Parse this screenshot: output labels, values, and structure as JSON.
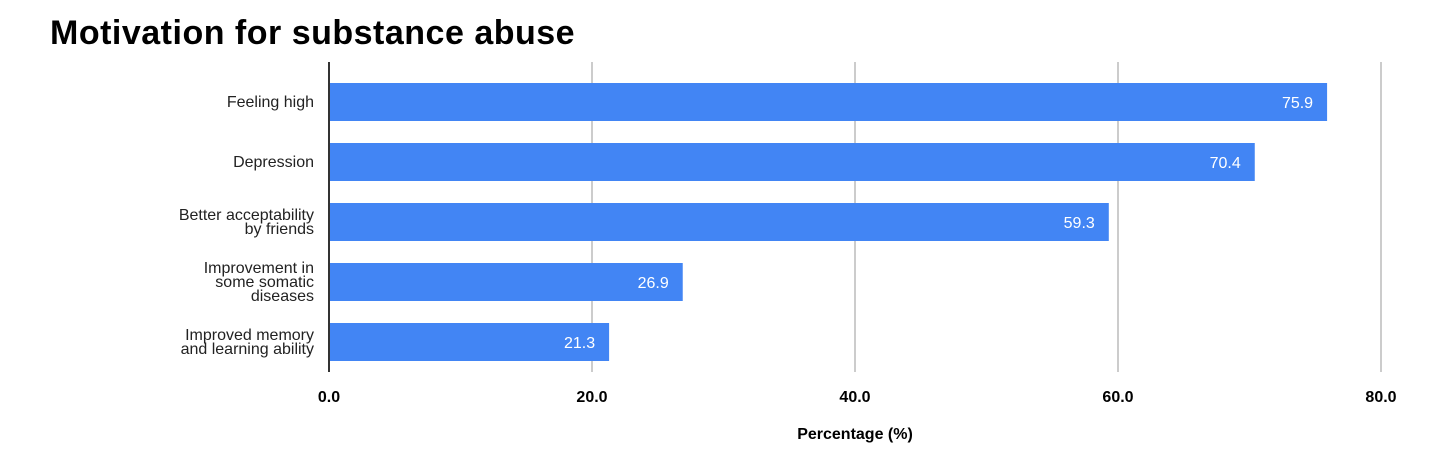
{
  "chart_data": {
    "type": "bar",
    "orientation": "horizontal",
    "title": "Motivation for substance abuse",
    "xlabel": "Percentage (%)",
    "ylabel": "",
    "categories": [
      [
        "Feeling high"
      ],
      [
        "Depression"
      ],
      [
        "Better acceptability",
        "by friends"
      ],
      [
        "Improvement in",
        "some somatic",
        "diseases"
      ],
      [
        "Improved memory",
        "and learning ability"
      ]
    ],
    "values": [
      75.9,
      70.4,
      59.3,
      26.9,
      21.3
    ],
    "value_labels": [
      "75.9",
      "70.4",
      "59.3",
      "26.9",
      "21.3"
    ],
    "xlim": [
      0,
      80
    ],
    "xticks": [
      0,
      20,
      40,
      60,
      80
    ],
    "xtick_labels": [
      "0.0",
      "20.0",
      "40.0",
      "60.0",
      "80.0"
    ],
    "grid": true,
    "legend": "none",
    "colors": {
      "bar": "#4285f4",
      "grid": "#cccccc",
      "axis": "#333333"
    }
  }
}
